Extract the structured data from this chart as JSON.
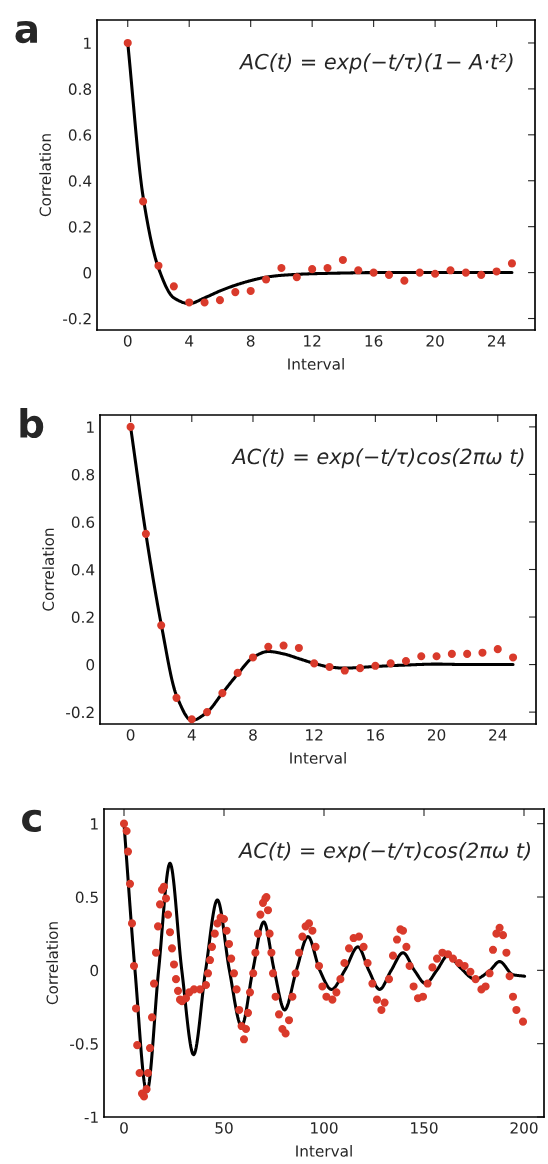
{
  "chart_data": [
    {
      "type": "scatter",
      "title": "a",
      "xlabel": "Interval",
      "ylabel": "Correlation",
      "annotations": [
        "AC(t) = exp(−t/τ)(1− A·t²)"
      ],
      "xlim": [
        -2,
        26.5
      ],
      "ylim": [
        -0.25,
        1.1
      ],
      "xticks": [
        0,
        4,
        8,
        12,
        16,
        20,
        24
      ],
      "yticks": [
        -0.2,
        0,
        0.2,
        0.4,
        0.6,
        0.8,
        1
      ],
      "series": [
        {
          "marker": "circle",
          "color": "#d93a2b",
          "x": [
            0,
            1,
            2,
            3,
            4,
            5,
            6,
            7,
            8,
            9,
            10,
            11,
            12,
            13,
            14,
            15,
            16,
            17,
            18,
            19,
            20,
            21,
            22,
            23,
            24,
            25
          ],
          "values": [
            1,
            0.31,
            0.03,
            -0.06,
            -0.13,
            -0.13,
            -0.12,
            -0.085,
            -0.08,
            -0.03,
            0.02,
            -0.02,
            0.015,
            0.02,
            0.055,
            0.01,
            0.0,
            -0.01,
            -0.035,
            0.0,
            -0.005,
            0.01,
            0.0,
            -0.01,
            0.005,
            0.04
          ]
        },
        {
          "type": "line",
          "marker": "none",
          "color": "#000000",
          "x": [
            0,
            1,
            2,
            3,
            4,
            5,
            6,
            7,
            8,
            9,
            10,
            12,
            14,
            16,
            20,
            25
          ],
          "values": [
            1,
            0.33,
            0.02,
            -0.11,
            -0.135,
            -0.11,
            -0.08,
            -0.055,
            -0.035,
            -0.02,
            -0.012,
            -0.005,
            -0.002,
            0,
            0,
            0
          ]
        }
      ]
    },
    {
      "type": "scatter",
      "title": "b",
      "xlabel": "Interval",
      "ylabel": "Correlation",
      "annotations": [
        "AC(t) = exp(−t/τ)cos(2πω t)"
      ],
      "xlim": [
        -2,
        26.5
      ],
      "ylim": [
        -0.25,
        1.05
      ],
      "xticks": [
        0,
        4,
        8,
        12,
        16,
        20,
        24
      ],
      "yticks": [
        -0.2,
        0,
        0.2,
        0.4,
        0.6,
        0.8,
        1
      ],
      "series": [
        {
          "marker": "circle",
          "color": "#d93a2b",
          "x": [
            0,
            1,
            2,
            3,
            4,
            5,
            6,
            7,
            8,
            9,
            10,
            11,
            12,
            13,
            14,
            15,
            16,
            17,
            18,
            19,
            20,
            21,
            22,
            23,
            24,
            25
          ],
          "values": [
            1,
            0.55,
            0.165,
            -0.14,
            -0.23,
            -0.2,
            -0.12,
            -0.035,
            0.03,
            0.075,
            0.08,
            0.07,
            0.005,
            -0.01,
            -0.025,
            -0.015,
            -0.005,
            0.005,
            0.015,
            0.035,
            0.035,
            0.045,
            0.045,
            0.05,
            0.065,
            0.03
          ]
        },
        {
          "type": "line",
          "marker": "none",
          "color": "#000000",
          "x": [
            0,
            1,
            2,
            3,
            4,
            5,
            6,
            7,
            8,
            9,
            10,
            11,
            12,
            13,
            14,
            15,
            16,
            18,
            20,
            22,
            25
          ],
          "values": [
            1,
            0.55,
            0.17,
            -0.13,
            -0.235,
            -0.2,
            -0.12,
            -0.04,
            0.03,
            0.055,
            0.045,
            0.025,
            0.005,
            -0.01,
            -0.015,
            -0.012,
            -0.008,
            -0.002,
            0.002,
            0,
            0
          ]
        }
      ]
    },
    {
      "type": "scatter",
      "title": "c",
      "xlabel": "Interval",
      "ylabel": "Correlation",
      "annotations": [
        "AC(t) = exp(−t/τ)cos(2πω t)"
      ],
      "xlim": [
        -10,
        210
      ],
      "ylim": [
        -1,
        1.1
      ],
      "xticks": [
        0,
        50,
        100,
        150,
        200
      ],
      "yticks": [
        {
          "value": -1,
          "label": "-1"
        },
        {
          "value": -0.5,
          "label": "-0.5"
        },
        0,
        0.5,
        1
      ],
      "series": [
        {
          "marker": "circle",
          "color": "#d93a2b",
          "x": [
            0,
            1.3,
            2,
            3,
            4,
            5,
            6,
            6.6,
            7.8,
            9,
            10,
            11.3,
            12,
            13,
            14,
            15,
            16,
            17,
            18,
            19,
            20,
            21,
            22,
            23,
            24,
            25,
            26,
            27,
            28,
            29,
            31,
            32.6,
            35,
            38,
            41,
            42,
            43,
            44,
            45.4,
            46.7,
            48.3,
            50,
            51.3,
            52.5,
            53.6,
            55,
            56.3,
            57.6,
            58.8,
            60,
            61,
            62,
            63,
            64.6,
            65.7,
            67,
            68.2,
            69.5,
            70.7,
            71.2,
            72,
            72.8,
            73.7,
            74.5,
            75.8,
            77.5,
            79.2,
            80.8,
            82.5,
            84.2,
            85.8,
            87.5,
            89.2,
            90.8,
            92.5,
            94.2,
            95.8,
            97.5,
            99.2,
            101.2,
            104.2,
            106.2,
            108.2,
            110.2,
            112.5,
            114.8,
            117.5,
            119.8,
            121.8,
            124.2,
            126.5,
            128.7,
            130.3,
            132.5,
            134.5,
            136.5,
            138.2,
            139.5,
            141.2,
            142.8,
            144.8,
            147,
            149.5,
            151.8,
            154.2,
            156.5,
            159.2,
            162,
            164.5,
            167.5,
            170.3,
            173.2,
            175.8,
            178.7,
            180.8,
            182.8,
            184.5,
            186.2,
            187.8,
            189.5,
            191.2,
            192.8,
            194.5,
            196.2,
            199.5
          ],
          "values": [
            1,
            0.95,
            0.81,
            0.59,
            0.32,
            0.03,
            -0.26,
            -0.51,
            -0.7,
            -0.84,
            -0.86,
            -0.81,
            -0.7,
            -0.53,
            -0.32,
            -0.09,
            0.12,
            0.3,
            0.45,
            0.55,
            0.57,
            0.49,
            0.38,
            0.26,
            0.15,
            0.04,
            -0.06,
            -0.14,
            -0.2,
            -0.21,
            -0.19,
            -0.15,
            -0.13,
            -0.13,
            -0.1,
            -0.02,
            0.07,
            0.16,
            0.25,
            0.32,
            0.36,
            0.35,
            0.27,
            0.18,
            0.08,
            -0.02,
            -0.13,
            -0.27,
            -0.38,
            -0.47,
            -0.4,
            -0.29,
            -0.15,
            -0.02,
            0.12,
            0.25,
            0.38,
            0.46,
            0.49,
            0.5,
            0.41,
            0.25,
            0.12,
            -0.02,
            -0.18,
            -0.3,
            -0.4,
            -0.43,
            -0.34,
            -0.18,
            -0.02,
            0.12,
            0.23,
            0.3,
            0.32,
            0.27,
            0.16,
            0.03,
            -0.11,
            -0.18,
            -0.2,
            -0.15,
            -0.06,
            0.05,
            0.15,
            0.22,
            0.23,
            0.16,
            0.05,
            -0.09,
            -0.2,
            -0.27,
            -0.22,
            -0.06,
            0.1,
            0.21,
            0.28,
            0.27,
            0.16,
            0.03,
            -0.11,
            -0.19,
            -0.18,
            -0.09,
            0.02,
            0.08,
            0.12,
            0.11,
            0.08,
            0.05,
            0.03,
            -0.01,
            -0.06,
            -0.13,
            -0.11,
            -0.02,
            0.14,
            0.25,
            0.29,
            0.24,
            0.12,
            -0.04,
            -0.18,
            -0.27,
            -0.35
          ]
        },
        {
          "type": "line",
          "marker": "none",
          "color": "#000000",
          "x": [
            0,
            5.5,
            11.4,
            17.3,
            23,
            28.9,
            34.8,
            40.8,
            46.7,
            52.7,
            58.8,
            64.4,
            69.9,
            75.1,
            80.3,
            86.2,
            92,
            97.9,
            103.7,
            110.4,
            117,
            122.4,
            127.8,
            133.6,
            139.5,
            145.2,
            150.8,
            156.4,
            162,
            168,
            175.5,
            183,
            187.8,
            194.5,
            200.3
          ],
          "values": [
            1,
            0,
            -0.83,
            0,
            0.73,
            0,
            -0.575,
            0,
            0.48,
            0,
            -0.38,
            0,
            0.33,
            0,
            -0.27,
            0,
            0.23,
            0,
            -0.13,
            0,
            0.16,
            0,
            -0.13,
            0,
            0.12,
            0,
            -0.09,
            0,
            0.1,
            0.02,
            -0.06,
            0,
            0.06,
            -0.03,
            -0.04
          ]
        }
      ]
    }
  ]
}
